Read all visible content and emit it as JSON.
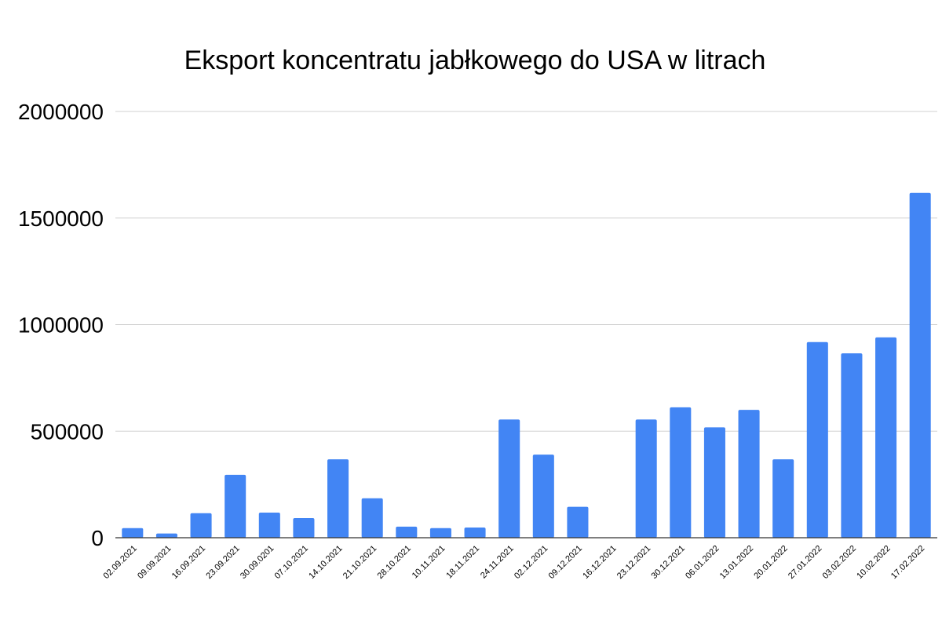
{
  "chart_data": {
    "type": "bar",
    "title": "Eksport koncentratu jabłkowego do USA w litrach",
    "xlabel": "",
    "ylabel": "",
    "ylim": [
      0,
      2000000
    ],
    "yticks": [
      "0",
      "500000",
      "1000000",
      "1500000",
      "2000000"
    ],
    "ytick_values": [
      0,
      500000,
      1000000,
      1500000,
      2000000
    ],
    "grid": true,
    "legend": "none",
    "bar_color": "#4285f4",
    "categories": [
      "02.09.2021",
      "09.09.2021",
      "16.09.2021",
      "23.09.2021",
      "30.09.0201",
      "07.10.2021",
      "14.10.2021",
      "21.10.2021",
      "28.10.2021",
      "10.11.2021",
      "18.11.2021",
      "24.11.2021",
      "02.12.2021",
      "09.12.2021",
      "16.12.2021",
      "23.12.2021",
      "30.12.2021",
      "06.01.2022",
      "13.01.2022",
      "20.01.2022",
      "27.01.2022",
      "03.02.2022",
      "10.02.2022",
      "17.02.2022"
    ],
    "values": [
      45000,
      20000,
      115000,
      295000,
      118000,
      92000,
      368000,
      185000,
      52000,
      45000,
      48000,
      555000,
      390000,
      145000,
      0,
      555000,
      612000,
      518000,
      600000,
      368000,
      918000,
      865000,
      940000,
      1618000
    ]
  }
}
